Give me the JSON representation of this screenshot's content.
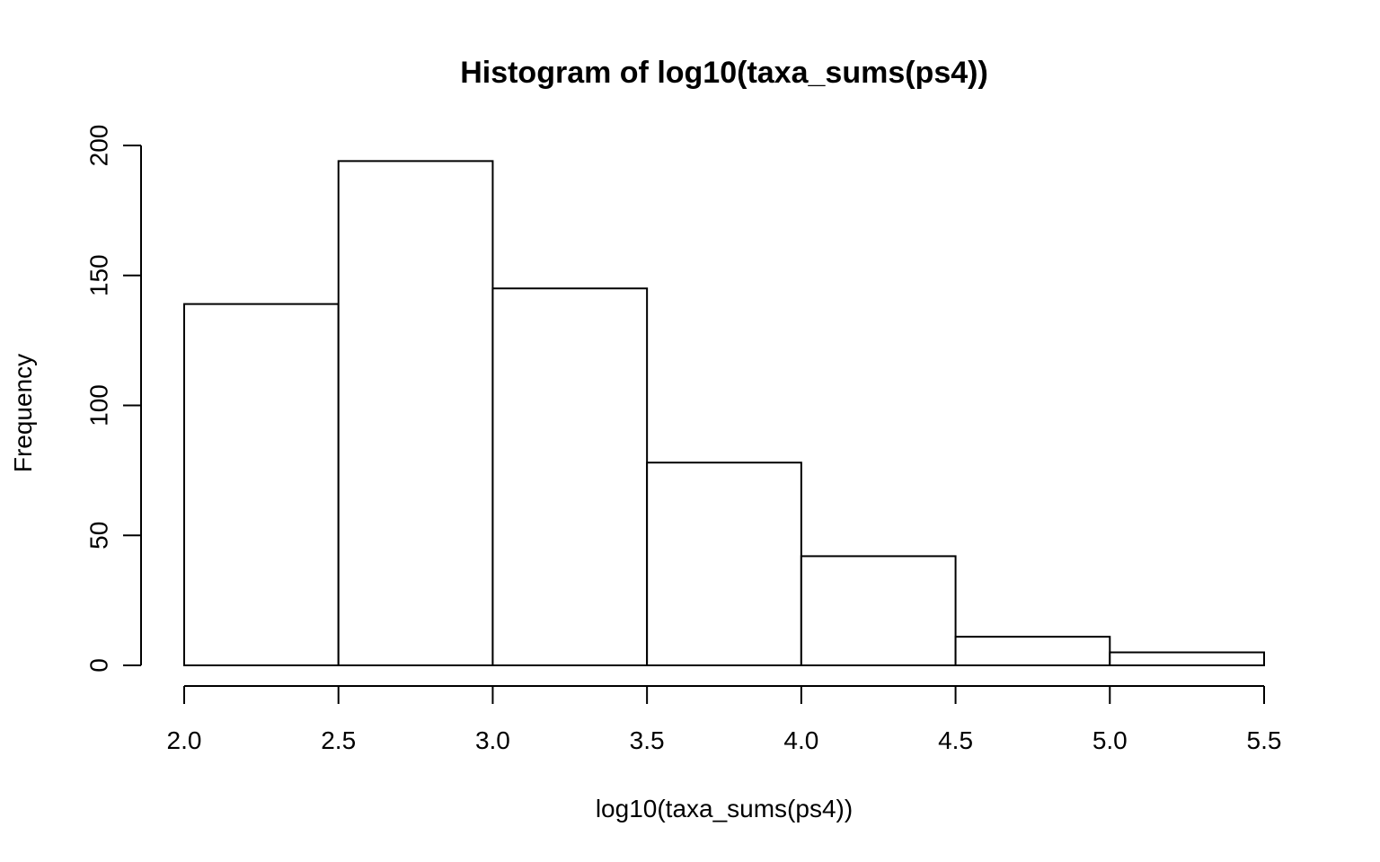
{
  "chart_data": {
    "type": "bar",
    "title": "Histogram of log10(taxa_sums(ps4))",
    "xlabel": "log10(taxa_sums(ps4))",
    "ylabel": "Frequency",
    "bins": [
      {
        "start": 2.0,
        "end": 2.5,
        "value": 139
      },
      {
        "start": 2.5,
        "end": 3.0,
        "value": 194
      },
      {
        "start": 3.0,
        "end": 3.5,
        "value": 145
      },
      {
        "start": 3.5,
        "end": 4.0,
        "value": 78
      },
      {
        "start": 4.0,
        "end": 4.5,
        "value": 42
      },
      {
        "start": 4.5,
        "end": 5.0,
        "value": 11
      },
      {
        "start": 5.0,
        "end": 5.5,
        "value": 5
      }
    ],
    "xlim": [
      2.0,
      5.5
    ],
    "ylim": [
      0,
      200
    ],
    "x_ticks": [
      "2.0",
      "2.5",
      "3.0",
      "3.5",
      "4.0",
      "4.5",
      "5.0",
      "5.5"
    ],
    "y_ticks": [
      "0",
      "50",
      "100",
      "150",
      "200"
    ],
    "grid": false,
    "legend": "none",
    "colors": {
      "bar_fill": "#ffffff",
      "bar_stroke": "#000000",
      "text": "#000000",
      "background": "#ffffff"
    }
  }
}
